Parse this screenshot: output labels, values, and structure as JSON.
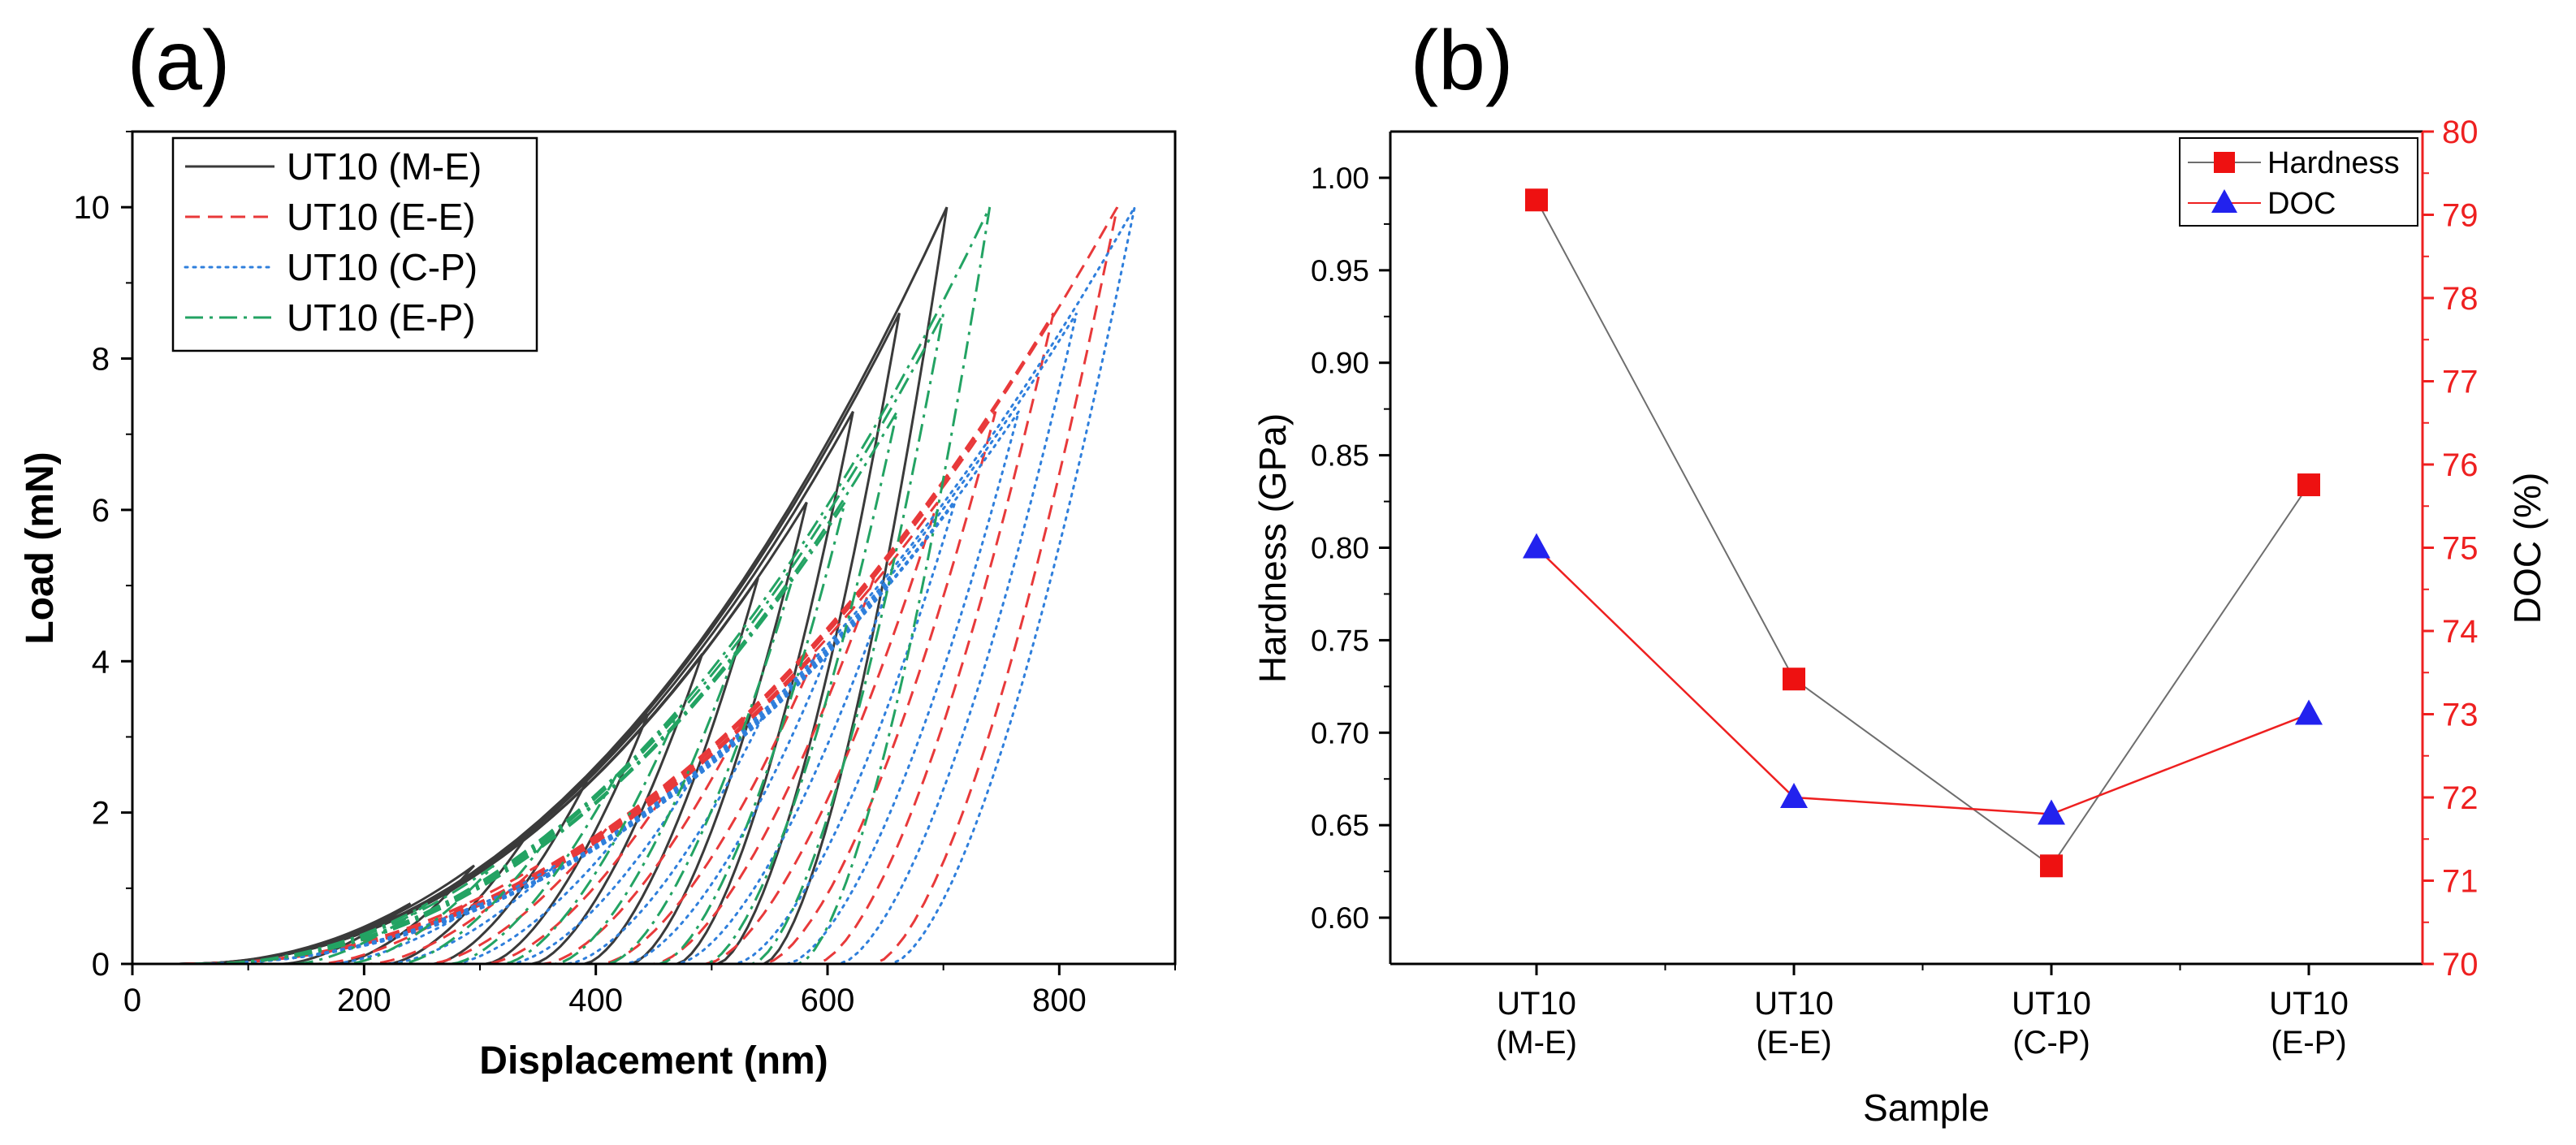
{
  "chart_data": [
    {
      "panel": "(a)",
      "type": "line",
      "xlabel": "Displacement (nm)",
      "ylabel": "Load (mN)",
      "xlim": [
        0,
        900
      ],
      "ylim": [
        0,
        11
      ],
      "xticks": [
        0,
        200,
        400,
        600,
        800
      ],
      "yticks": [
        0,
        2,
        4,
        6,
        8,
        10
      ],
      "legend_position": "top-left",
      "peak_loads": [
        0.8,
        1.3,
        1.8,
        2.5,
        3.3,
        4.1,
        5.1,
        6.1,
        7.3,
        8.6,
        10.0
      ],
      "series": [
        {
          "name": "UT10 (M-E)",
          "color": "#3a3a3a",
          "style": "solid",
          "peak_depths": [
            240,
            295,
            345,
            395,
            445,
            492,
            540,
            582,
            622,
            662,
            703
          ],
          "residual_depths": [
            130,
            175,
            220,
            260,
            305,
            345,
            390,
            430,
            470,
            505,
            545
          ]
        },
        {
          "name": "UT10 (E-E)",
          "color": "#e8393a",
          "style": "dashed",
          "peak_depths": [
            290,
            350,
            410,
            470,
            530,
            590,
            640,
            695,
            745,
            795,
            850
          ],
          "residual_depths": [
            160,
            205,
            255,
            305,
            355,
            405,
            450,
            495,
            545,
            590,
            640
          ]
        },
        {
          "name": "UT10 (C-P)",
          "color": "#2f7fdc",
          "style": "dotted",
          "peak_depths": [
            300,
            365,
            425,
            485,
            545,
            600,
            655,
            710,
            765,
            815,
            865
          ],
          "residual_depths": [
            170,
            220,
            275,
            325,
            375,
            425,
            470,
            520,
            565,
            610,
            655
          ]
        },
        {
          "name": "UT10 (E-P)",
          "color": "#23a363",
          "style": "dashdot",
          "peak_depths": [
            255,
            312,
            365,
            418,
            470,
            520,
            570,
            615,
            660,
            700,
            740
          ],
          "residual_depths": [
            140,
            185,
            230,
            275,
            320,
            365,
            410,
            455,
            495,
            535,
            575
          ]
        }
      ]
    },
    {
      "panel": "(b)",
      "type": "line",
      "xlabel": "Sample",
      "ylabel": "Hardness (GPa)",
      "y2label": "DOC (%)",
      "categories": [
        [
          "UT10",
          "(M-E)"
        ],
        [
          "UT10",
          "(E-E)"
        ],
        [
          "UT10",
          "(C-P)"
        ],
        [
          "UT10",
          "(E-P)"
        ]
      ],
      "ylim": [
        0.575,
        1.025
      ],
      "yticks": [
        "0.60",
        "0.65",
        "0.70",
        "0.75",
        "0.80",
        "0.85",
        "0.90",
        "0.95",
        "1.00"
      ],
      "y2lim": [
        70,
        80
      ],
      "y2ticks": [
        70,
        71,
        72,
        73,
        74,
        75,
        76,
        77,
        78,
        79,
        80
      ],
      "legend_position": "top-right",
      "series": [
        {
          "name": "Hardness",
          "axis": "left",
          "marker": "square",
          "marker_color": "#ee1111",
          "line_color": "#6e6e6e",
          "values": [
            0.988,
            0.729,
            0.628,
            0.834
          ]
        },
        {
          "name": "DOC",
          "axis": "right",
          "marker": "triangle",
          "marker_color": "#2222ee",
          "line_color": "#ee2020",
          "values": [
            75.0,
            72.0,
            71.8,
            73.0
          ]
        }
      ]
    }
  ]
}
